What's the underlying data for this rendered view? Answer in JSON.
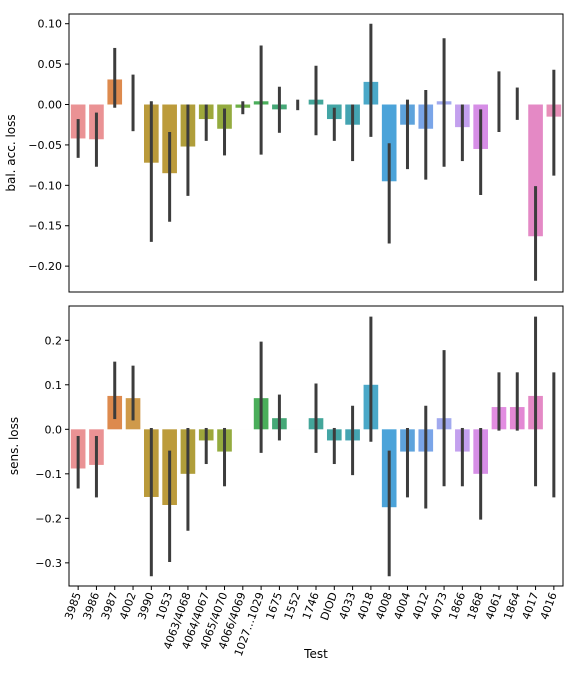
{
  "chart_data": [
    {
      "type": "bar",
      "xlabel": "",
      "ylabel": "bal. acc. loss",
      "ylim": [
        -0.232,
        0.112
      ],
      "yticks": [
        0.1,
        0.05,
        0.0,
        -0.05,
        -0.1,
        -0.15,
        -0.2
      ],
      "yticklabels": [
        "0.10",
        "0.05",
        "0.00",
        "−0.05",
        "−0.10",
        "−0.15",
        "−0.20"
      ],
      "categories": [
        "3985",
        "3986",
        "3987",
        "4002",
        "3990",
        "1053",
        "4063/4068",
        "4064/4067",
        "4065/4070",
        "4066/4069",
        "1027…1029",
        "1675",
        "1552",
        "1746",
        "DIOD",
        "4033",
        "4018",
        "4008",
        "4004",
        "4012",
        "4073",
        "1866",
        "1868",
        "4061",
        "1864",
        "4017",
        "4016"
      ],
      "values": [
        -0.042,
        -0.043,
        0.031,
        0.0,
        -0.072,
        -0.085,
        -0.052,
        -0.018,
        -0.03,
        -0.004,
        0.004,
        -0.006,
        0.0,
        0.006,
        -0.018,
        -0.025,
        0.028,
        -0.095,
        -0.025,
        -0.03,
        0.004,
        -0.028,
        -0.055,
        0.0,
        0.0,
        -0.163,
        -0.015
      ],
      "ci_low": [
        -0.066,
        -0.077,
        -0.004,
        -0.033,
        -0.17,
        -0.145,
        -0.113,
        -0.045,
        -0.063,
        -0.012,
        -0.062,
        -0.035,
        -0.007,
        -0.038,
        -0.045,
        -0.07,
        -0.04,
        -0.172,
        -0.08,
        -0.093,
        -0.077,
        -0.07,
        -0.112,
        -0.034,
        -0.019,
        -0.218,
        -0.088
      ],
      "ci_high": [
        -0.018,
        -0.01,
        0.07,
        0.037,
        0.004,
        -0.034,
        0.0,
        0.0,
        -0.005,
        0.004,
        0.073,
        0.022,
        0.006,
        0.048,
        -0.004,
        0.0,
        0.1,
        -0.048,
        0.006,
        0.018,
        0.082,
        0.0,
        -0.006,
        0.041,
        0.021,
        -0.101,
        0.043
      ],
      "grid": false,
      "legend": "none"
    },
    {
      "type": "bar",
      "xlabel": "Test",
      "ylabel": "sens. loss",
      "ylim": [
        -0.352,
        0.277
      ],
      "yticks": [
        0.2,
        0.1,
        0.0,
        -0.1,
        -0.2,
        -0.3
      ],
      "yticklabels": [
        "0.2",
        "0.1",
        "0.0",
        "−0.1",
        "−0.2",
        "−0.3"
      ],
      "categories": [
        "3985",
        "3986",
        "3987",
        "4002",
        "3990",
        "1053",
        "4063/4068",
        "4064/4067",
        "4065/4070",
        "4066/4069",
        "1027…1029",
        "1675",
        "1552",
        "1746",
        "DIOD",
        "4033",
        "4018",
        "4008",
        "4004",
        "4012",
        "4073",
        "1866",
        "1868",
        "4061",
        "1864",
        "4017",
        "4016"
      ],
      "values": [
        -0.088,
        -0.08,
        0.075,
        0.07,
        -0.152,
        -0.17,
        -0.1,
        -0.025,
        -0.05,
        0.0,
        0.07,
        0.025,
        0.0,
        0.025,
        -0.025,
        -0.025,
        0.1,
        -0.175,
        -0.05,
        -0.05,
        0.025,
        -0.05,
        -0.1,
        0.05,
        0.05,
        0.075,
        0.0
      ],
      "ci_low": [
        -0.133,
        -0.153,
        0.023,
        0.02,
        -0.33,
        -0.298,
        -0.228,
        -0.078,
        -0.128,
        0.0,
        -0.053,
        -0.025,
        0.0,
        -0.053,
        -0.078,
        -0.103,
        -0.028,
        -0.33,
        -0.153,
        -0.178,
        -0.128,
        -0.128,
        -0.203,
        -0.003,
        -0.003,
        -0.128,
        -0.153
      ],
      "ci_high": [
        -0.015,
        -0.015,
        0.152,
        0.143,
        0.003,
        -0.048,
        0.003,
        0.003,
        0.003,
        0.0,
        0.197,
        0.078,
        0.0,
        0.103,
        0.003,
        0.053,
        0.253,
        -0.048,
        0.003,
        0.053,
        0.178,
        0.003,
        0.003,
        0.128,
        0.128,
        0.253,
        0.128
      ],
      "grid": false,
      "legend": "none"
    }
  ],
  "colors": [
    "#ea9294",
    "#ea9294",
    "#dd8a4e",
    "#cf9a4a",
    "#ba9a3a",
    "#bc9b3b",
    "#b09e3a",
    "#9ea83b",
    "#94ab3f",
    "#6daf47",
    "#4aae5a",
    "#45a877",
    "#46a98a",
    "#43a69a",
    "#43a5a5",
    "#44a4b2",
    "#4aa8c8",
    "#4ba3d9",
    "#5ea3dc",
    "#7aa5e8",
    "#a1a9ee",
    "#c3a0ee",
    "#d68ee6",
    "#e28de1",
    "#e388d4",
    "#e489c5",
    "#e78fb8"
  ],
  "err_color": "#3c3c3c"
}
